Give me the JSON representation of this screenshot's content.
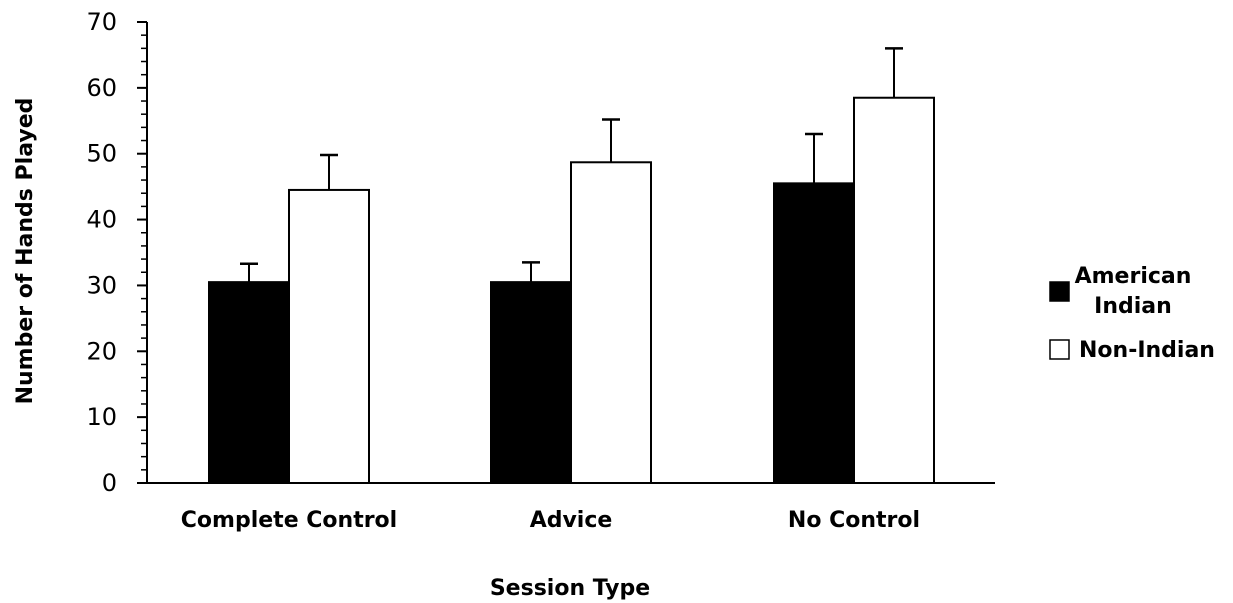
{
  "chart_data": {
    "type": "bar",
    "title": "",
    "xlabel": "Session Type",
    "ylabel": "Number of Hands Played",
    "categories": [
      "Complete Control",
      "Advice",
      "No Control"
    ],
    "ylim": [
      0,
      70
    ],
    "yticks": [
      0,
      10,
      20,
      30,
      40,
      50,
      60,
      70
    ],
    "grid": false,
    "error_bars": true,
    "legend": {
      "placement": "right",
      "entries": [
        {
          "lines": [
            "American",
            "Indian"
          ],
          "fill": "#000000"
        },
        {
          "lines": [
            "Non-Indian"
          ],
          "fill": "#ffffff"
        }
      ]
    },
    "series": [
      {
        "name": "American Indian",
        "color": "#000000",
        "values": [
          30.5,
          30.5,
          45.5
        ],
        "errors": [
          2.8,
          3.0,
          7.5
        ]
      },
      {
        "name": "Non-Indian",
        "color": "#ffffff",
        "values": [
          44.5,
          48.7,
          58.5
        ],
        "errors": [
          5.3,
          6.5,
          7.5
        ]
      }
    ]
  }
}
